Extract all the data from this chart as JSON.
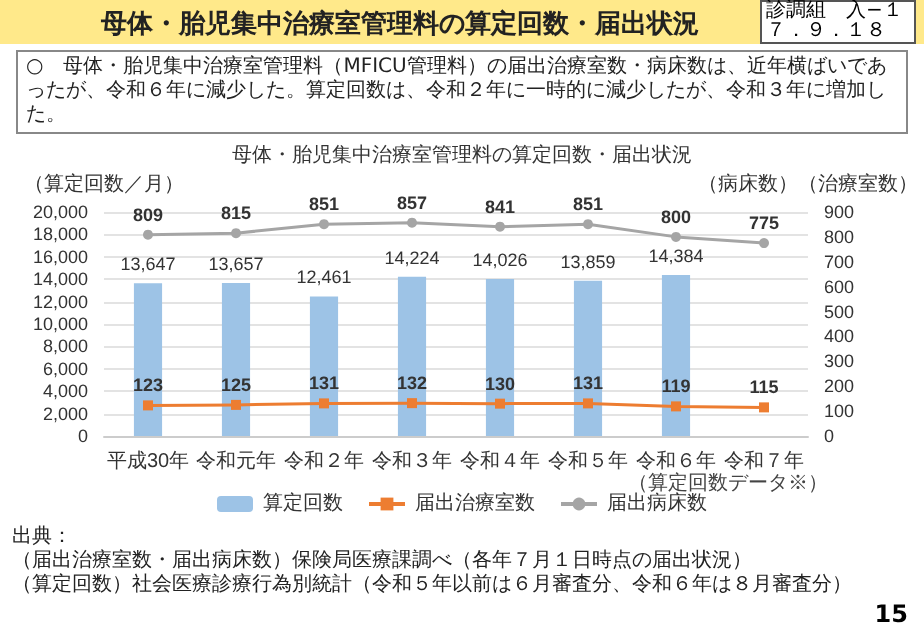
{
  "chart_data": {
    "type": "bar",
    "title": "母体・胎児集中治療室管理料の算定回数・届出状況",
    "ylabel": "（算定回数／月）",
    "y2label": "（病床数）（治療室数）",
    "categories": [
      "平成30年",
      "令和元年",
      "令和２年",
      "令和３年",
      "令和４年",
      "令和５年",
      "令和６年",
      "令和７年"
    ],
    "series": [
      {
        "name": "算定回数",
        "color": "#9dc3e6",
        "values": [
          13647,
          13657,
          12461,
          14224,
          14026,
          13859,
          14384,
          null
        ],
        "value_labels": [
          "13,647",
          "13,657",
          "12,461",
          "14,224",
          "14,026",
          "13,859",
          "14,384",
          null
        ]
      },
      {
        "name": "届出治療室数",
        "type": "line",
        "axis": "y2",
        "marker": "square",
        "color": "#ed7d31",
        "values": [
          123,
          125,
          131,
          132,
          130,
          131,
          119,
          115
        ]
      },
      {
        "name": "届出病床数",
        "type": "line",
        "axis": "y2",
        "marker": "circle",
        "color": "#a5a5a5",
        "values": [
          809,
          815,
          851,
          857,
          841,
          851,
          800,
          775
        ]
      }
    ],
    "ylim": [
      0,
      20000
    ],
    "yticks": [
      {
        "value": 0,
        "label": "0"
      },
      {
        "value": 2000,
        "label": "2,000"
      },
      {
        "value": 4000,
        "label": "4,000"
      },
      {
        "value": 6000,
        "label": "6,000"
      },
      {
        "value": 8000,
        "label": "8,000"
      },
      {
        "value": 10000,
        "label": "10,000"
      },
      {
        "value": 12000,
        "label": "12,000"
      },
      {
        "value": 14000,
        "label": "14,000"
      },
      {
        "value": 16000,
        "label": "16,000"
      },
      {
        "value": 18000,
        "label": "18,000"
      },
      {
        "value": 20000,
        "label": "20,000"
      }
    ],
    "y2lim": [
      0,
      900
    ],
    "y2ticks": [
      0,
      100,
      200,
      300,
      400,
      500,
      600,
      700,
      800,
      900
    ],
    "data_labels": true,
    "grid": "y",
    "legend": "bottom",
    "annotations": [
      "母体・胎児集中治療室管理料の算定回数・届出状況",
      "診調組　入−１７．９．１８",
      "○　母体・胎児集中治療室管理料（MFICU管理料）の届出治療室数・病床数は、近年横ばいであったが、令和６年に減少した。算定回数は、令和２年に一時的に減少したが、令和３年に増加した。",
      "（算定回数データ※）",
      "出典：",
      "（届出治療室数・届出病床数）保険局医療課調べ（各年７月１日時点の届出状況）",
      "（算定回数）社会医療診療行為別統計（令和５年以前は６月審査分、令和６年は８月審査分）",
      "15"
    ]
  }
}
